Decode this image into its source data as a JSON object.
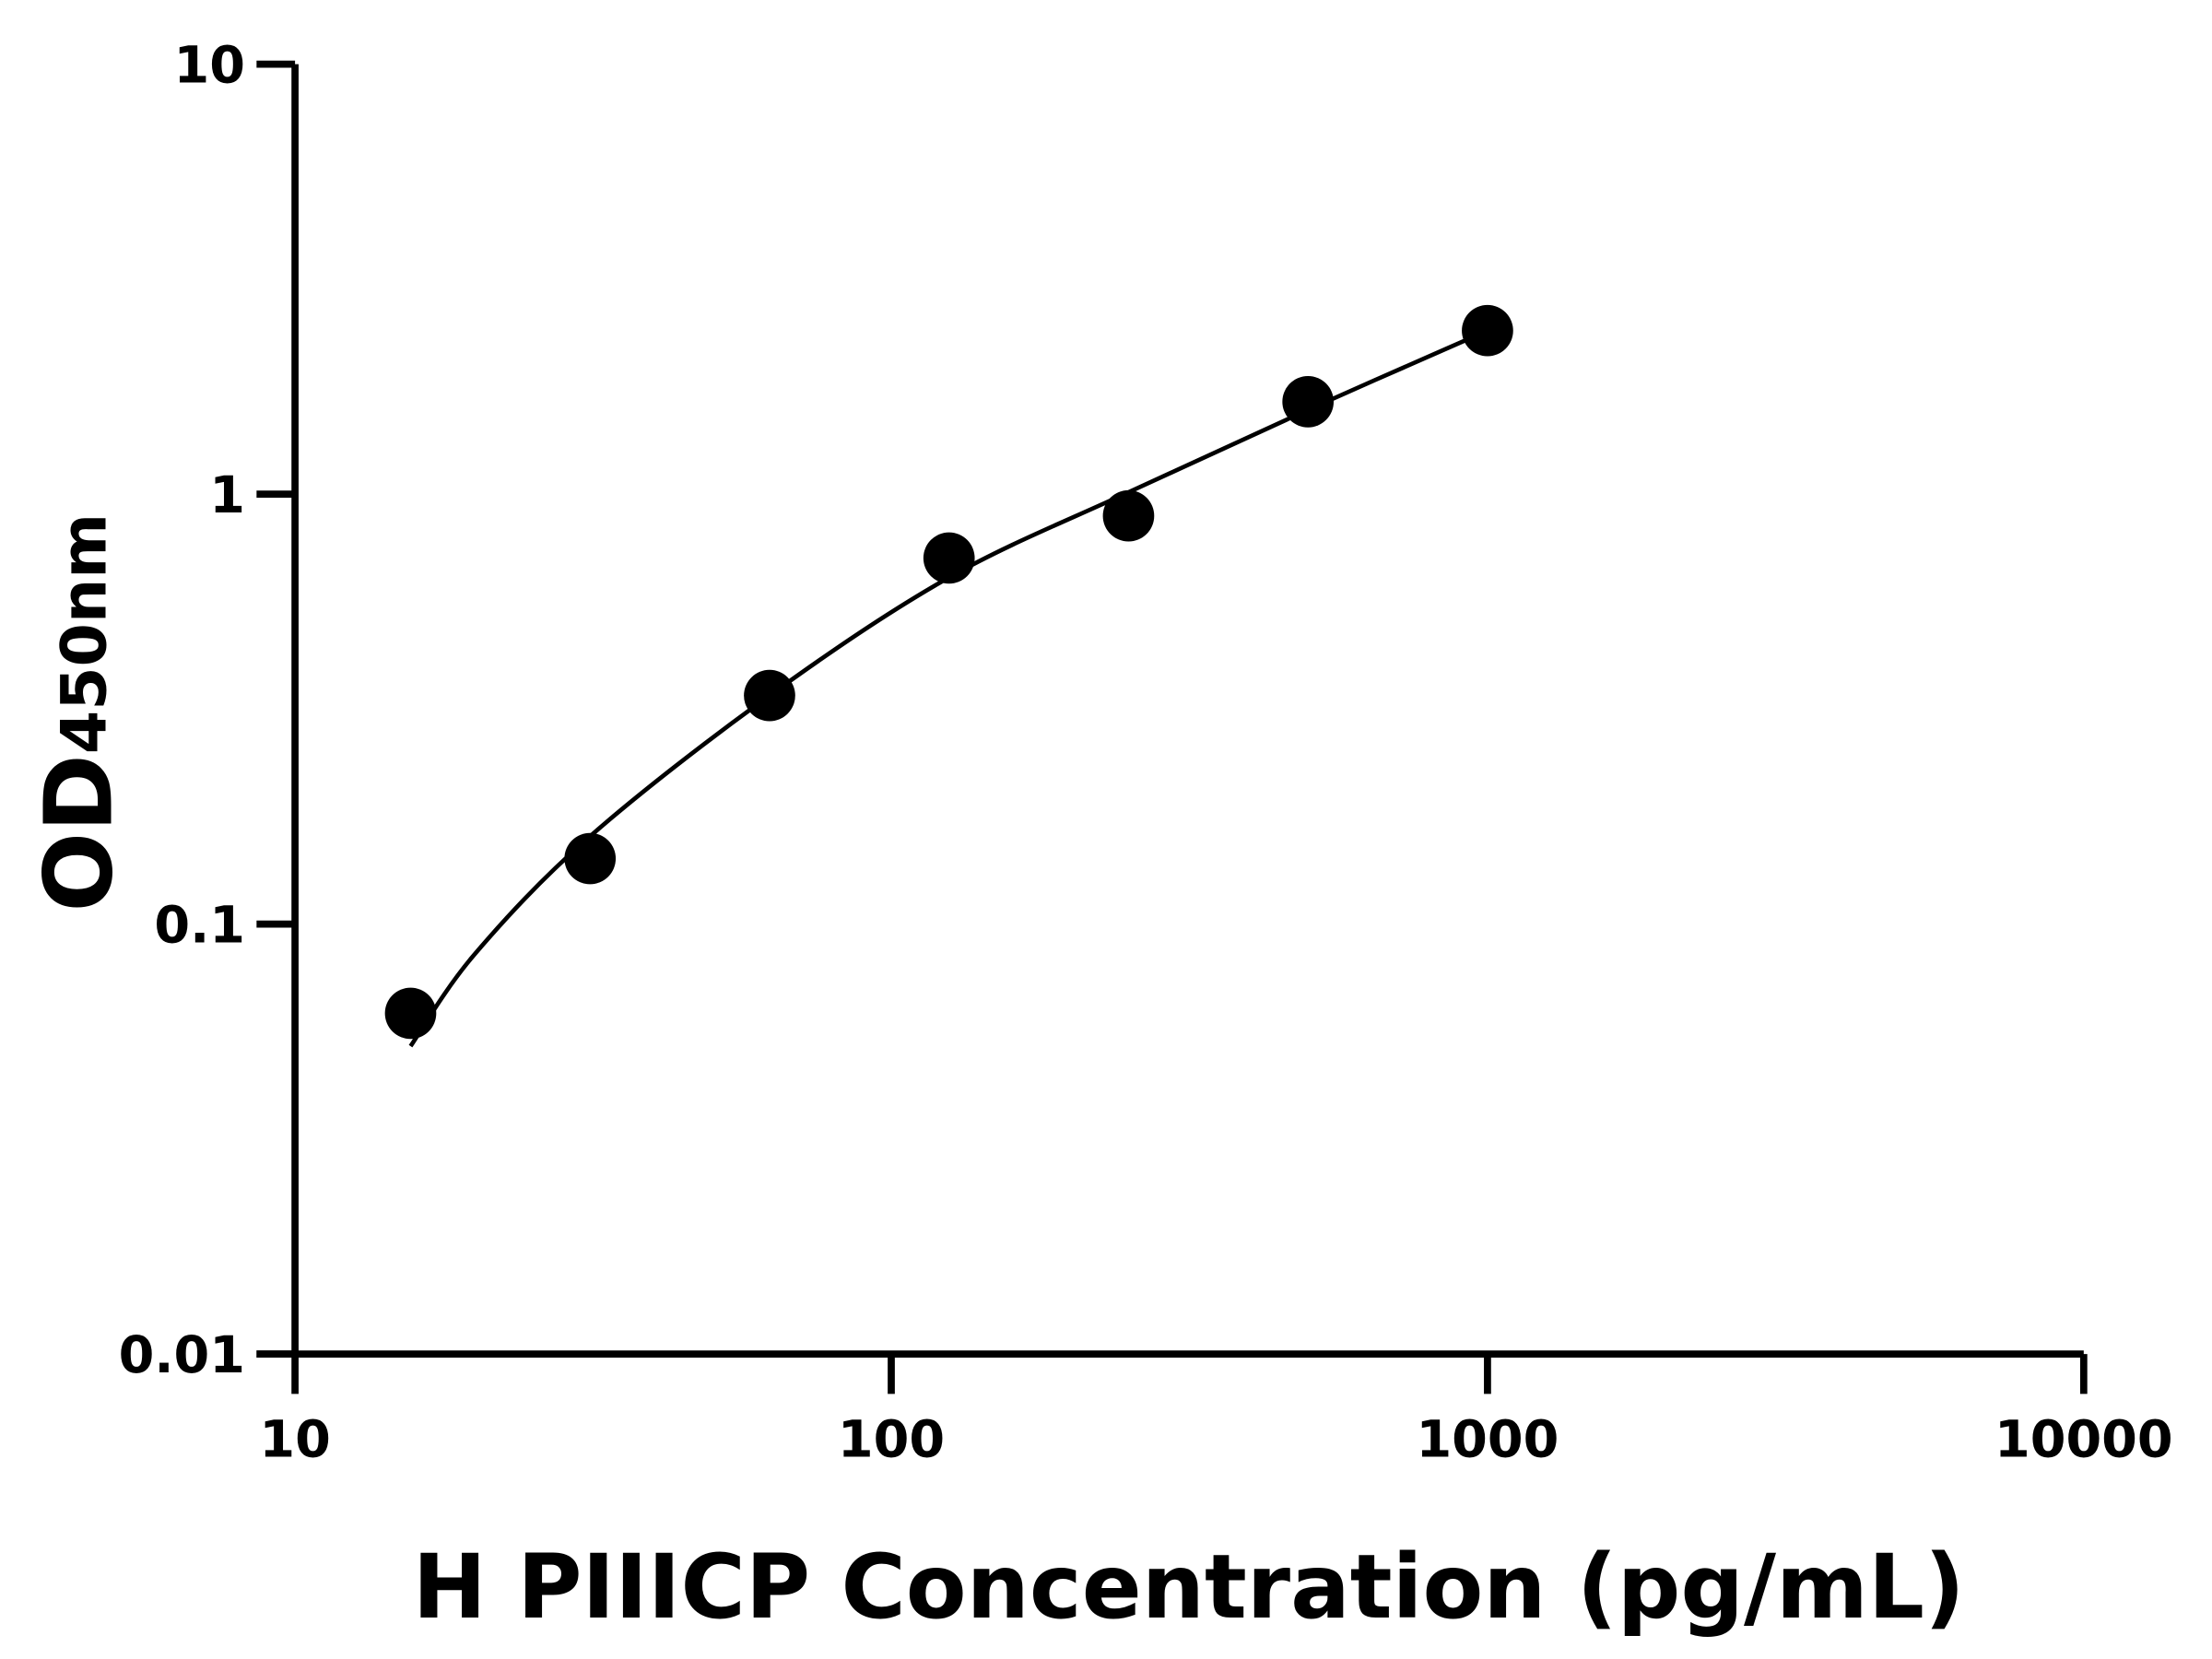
{
  "chart_data": {
    "type": "scatter",
    "title": "",
    "xlabel": "H PIIICP Concentration (pg/mL)",
    "ylabel_main": "OD",
    "ylabel_sub": "450nm",
    "x_scale": "log",
    "y_scale": "log",
    "xlim": [
      10,
      10000
    ],
    "ylim": [
      0.01,
      10
    ],
    "x_ticks": [
      10,
      100,
      1000,
      10000
    ],
    "x_tick_labels": [
      "10",
      "100",
      "1000",
      "10000"
    ],
    "y_ticks": [
      0.01,
      0.1,
      1,
      10
    ],
    "y_tick_labels": [
      "0.01",
      "0.1",
      "1",
      "10"
    ],
    "grid": false,
    "legend": "none",
    "points": {
      "x": [
        15.625,
        31.25,
        62.5,
        125,
        250,
        500,
        1000
      ],
      "y": [
        0.062,
        0.142,
        0.34,
        0.71,
        0.89,
        1.64,
        2.4
      ]
    },
    "fit_curve": {
      "x": [
        15.625,
        20,
        31.25,
        62.5,
        125,
        250,
        500,
        1000
      ],
      "y": [
        0.052,
        0.085,
        0.16,
        0.34,
        0.64,
        1.01,
        1.57,
        2.4
      ]
    },
    "colors": {
      "points": "#000000",
      "curve": "#000000",
      "axes": "#000000"
    }
  }
}
